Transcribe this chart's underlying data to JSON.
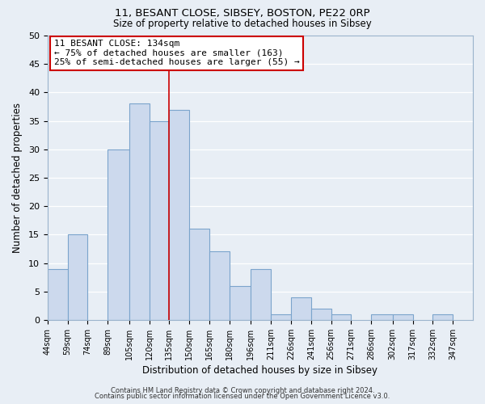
{
  "title": "11, BESANT CLOSE, SIBSEY, BOSTON, PE22 0RP",
  "subtitle": "Size of property relative to detached houses in Sibsey",
  "xlabel": "Distribution of detached houses by size in Sibsey",
  "ylabel": "Number of detached properties",
  "bar_left_edges": [
    44,
    59,
    74,
    89,
    105,
    120,
    135,
    150,
    165,
    180,
    196,
    211,
    226,
    241,
    256,
    271,
    286,
    302,
    317,
    332
  ],
  "bar_heights": [
    9,
    15,
    0,
    30,
    38,
    35,
    37,
    16,
    12,
    6,
    9,
    1,
    4,
    2,
    1,
    0,
    1,
    1,
    0,
    1
  ],
  "bar_widths": [
    15,
    15,
    15,
    16,
    15,
    15,
    15,
    15,
    15,
    16,
    15,
    15,
    15,
    15,
    15,
    15,
    16,
    15,
    15,
    15
  ],
  "tick_labels": [
    "44sqm",
    "59sqm",
    "74sqm",
    "89sqm",
    "105sqm",
    "120sqm",
    "135sqm",
    "150sqm",
    "165sqm",
    "180sqm",
    "196sqm",
    "211sqm",
    "226sqm",
    "241sqm",
    "256sqm",
    "271sqm",
    "286sqm",
    "302sqm",
    "317sqm",
    "332sqm",
    "347sqm"
  ],
  "tick_positions": [
    44,
    59,
    74,
    89,
    105,
    120,
    135,
    150,
    165,
    180,
    196,
    211,
    226,
    241,
    256,
    271,
    286,
    302,
    317,
    332,
    347
  ],
  "bar_color": "#ccd9ed",
  "bar_edge_color": "#7ba4cc",
  "vline_x": 135,
  "vline_color": "#cc0000",
  "annotation_title": "11 BESANT CLOSE: 134sqm",
  "annotation_line1": "← 75% of detached houses are smaller (163)",
  "annotation_line2": "25% of semi-detached houses are larger (55) →",
  "annotation_box_edge": "#cc0000",
  "ylim": [
    0,
    50
  ],
  "yticks": [
    0,
    5,
    10,
    15,
    20,
    25,
    30,
    35,
    40,
    45,
    50
  ],
  "footer_line1": "Contains HM Land Registry data © Crown copyright and database right 2024.",
  "footer_line2": "Contains public sector information licensed under the Open Government Licence v3.0.",
  "background_color": "#e8eef5",
  "plot_bg_color": "#e8eef5",
  "grid_color": "#ffffff"
}
